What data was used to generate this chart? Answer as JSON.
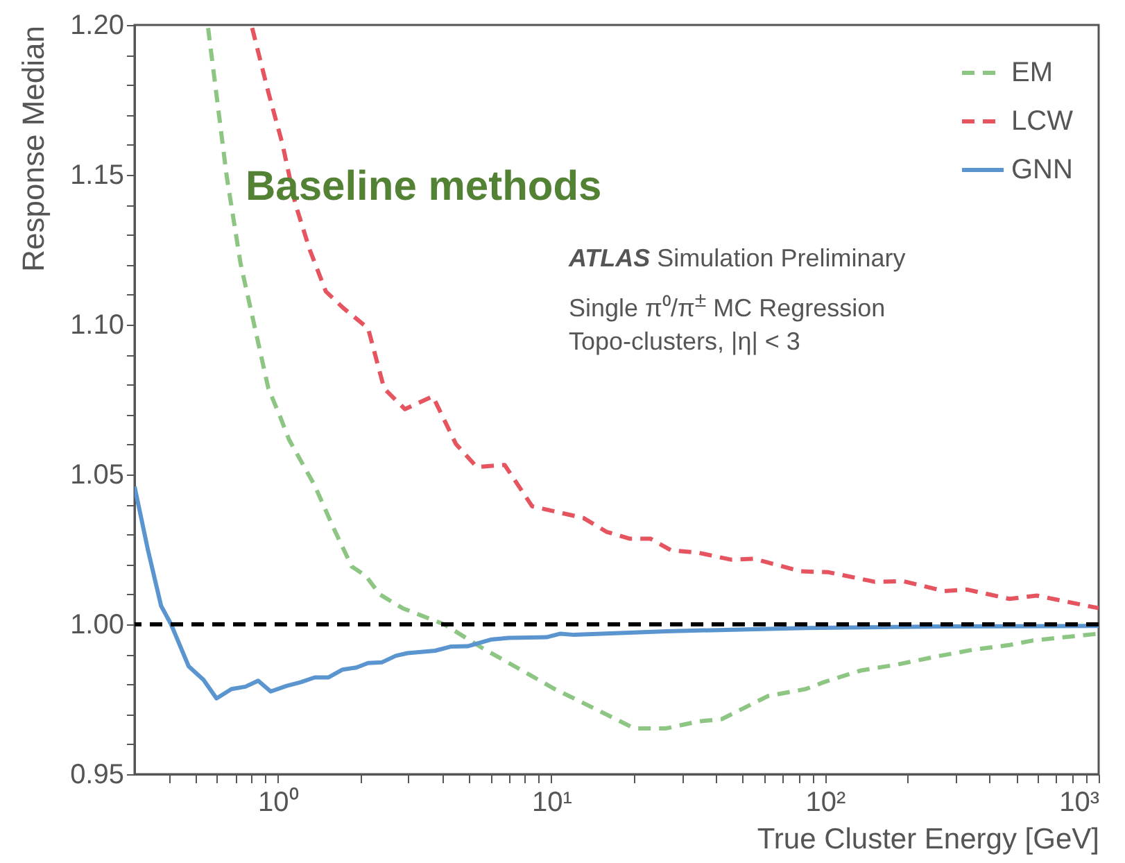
{
  "chart_data": {
    "type": "line",
    "xlabel": "True Cluster Energy [GeV]",
    "ylabel": "Response Median",
    "log": "x",
    "legend": "top right",
    "xlim": [
      0.3,
      1000
    ],
    "ylim": [
      0.95,
      1.2
    ],
    "xticks": [
      {
        "value": 0.4,
        "label": null
      },
      {
        "value": 0.5,
        "label": null
      },
      {
        "value": 0.6,
        "label": null
      },
      {
        "value": 0.7,
        "label": null
      },
      {
        "value": 0.8,
        "label": null
      },
      {
        "value": 0.9,
        "label": null
      },
      {
        "value": 1,
        "label": "10⁰"
      },
      {
        "value": 2,
        "label": null
      },
      {
        "value": 3,
        "label": null
      },
      {
        "value": 4,
        "label": null
      },
      {
        "value": 5,
        "label": null
      },
      {
        "value": 6,
        "label": null
      },
      {
        "value": 7,
        "label": null
      },
      {
        "value": 8,
        "label": null
      },
      {
        "value": 9,
        "label": null
      },
      {
        "value": 10,
        "label": "10¹"
      },
      {
        "value": 20,
        "label": null
      },
      {
        "value": 30,
        "label": null
      },
      {
        "value": 40,
        "label": null
      },
      {
        "value": 50,
        "label": null
      },
      {
        "value": 60,
        "label": null
      },
      {
        "value": 70,
        "label": null
      },
      {
        "value": 80,
        "label": null
      },
      {
        "value": 90,
        "label": null
      },
      {
        "value": 100,
        "label": "10²"
      },
      {
        "value": 200,
        "label": null
      },
      {
        "value": 300,
        "label": null
      },
      {
        "value": 400,
        "label": null
      },
      {
        "value": 500,
        "label": null
      },
      {
        "value": 600,
        "label": null
      },
      {
        "value": 700,
        "label": null
      },
      {
        "value": 800,
        "label": null
      },
      {
        "value": 900,
        "label": null
      },
      {
        "value": 1000,
        "label": "10³"
      }
    ],
    "yticks": [
      0.95,
      {
        "value": 0.96,
        "label": null
      },
      {
        "value": 0.97,
        "label": null
      },
      {
        "value": 0.98,
        "label": null
      },
      {
        "value": 0.99,
        "label": null
      },
      {
        "value": 1,
        "label": "1.00"
      },
      {
        "value": 1.01,
        "label": null
      },
      {
        "value": 1.02,
        "label": null
      },
      {
        "value": 1.03,
        "label": null
      },
      {
        "value": 1.04,
        "label": null
      },
      1.05,
      {
        "value": 1.06,
        "label": null
      },
      {
        "value": 1.07,
        "label": null
      },
      {
        "value": 1.08,
        "label": null
      },
      {
        "value": 1.09,
        "label": null
      },
      {
        "value": 1.1,
        "label": "1.10"
      },
      {
        "value": 1.11,
        "label": null
      },
      {
        "value": 1.12,
        "label": null
      },
      {
        "value": 1.13,
        "label": null
      },
      {
        "value": 1.14,
        "label": null
      },
      1.15,
      {
        "value": 1.16,
        "label": null
      },
      {
        "value": 1.17,
        "label": null
      },
      {
        "value": 1.18,
        "label": null
      },
      {
        "value": 1.19,
        "label": null
      },
      {
        "value": 1.2,
        "label": "1.20"
      }
    ],
    "series": [
      {
        "name": "EM",
        "color": "#8dc583",
        "line_style": "dashed",
        "x": [
          0.557,
          0.651,
          0.732,
          0.925,
          1.02,
          1.1,
          1.366,
          1.596,
          1.865,
          2.1,
          2.36,
          2.86,
          4.06,
          5.55,
          7.58,
          10.3,
          12.1,
          15.3,
          20.1,
          26.3,
          34.5,
          42,
          62,
          85,
          99,
          135,
          184,
          253,
          346,
          472,
          573,
          1000
        ],
        "values": [
          1.199,
          1.1497,
          1.1204,
          1.0787,
          1.0694,
          1.0617,
          1.0463,
          1.0324,
          1.0193,
          1.0162,
          1.01,
          1.0054,
          1.0,
          0.9923,
          0.9853,
          0.9784,
          0.9753,
          0.9707,
          0.9653,
          0.9653,
          0.9676,
          0.9684,
          0.9761,
          0.9784,
          0.9807,
          0.9846,
          0.9866,
          0.9892,
          0.9915,
          0.9931,
          0.9946,
          0.9969
        ]
      },
      {
        "name": "LCW",
        "color": "#e5545f",
        "line_style": "dashed",
        "x": [
          0.807,
          0.925,
          1.04,
          1.16,
          1.31,
          1.5,
          1.73,
          2.14,
          2.45,
          2.92,
          3.69,
          4.48,
          5.34,
          6.75,
          8.51,
          13.1,
          15.9,
          19.3,
          23,
          27.4,
          34.5,
          45.3,
          55,
          81.5,
          103,
          152,
          193,
          273,
          331,
          472,
          594,
          1000
        ],
        "values": [
          1.199,
          1.1775,
          1.1605,
          1.1404,
          1.125,
          1.1111,
          1.1057,
          1.0988,
          1.0787,
          1.0718,
          1.0761,
          1.0602,
          1.0525,
          1.0532,
          1.0394,
          1.0355,
          1.0309,
          1.0286,
          1.0286,
          1.0247,
          1.0239,
          1.0216,
          1.0219,
          1.0177,
          1.0174,
          1.0142,
          1.0144,
          1.0111,
          1.0116,
          1.0085,
          1.0096,
          1.0054
        ]
      },
      {
        "name": "GNN",
        "color": "#5b95cf",
        "line_style": "solid",
        "x": [
          0.3,
          0.336,
          0.375,
          0.408,
          0.473,
          0.536,
          0.598,
          0.678,
          0.762,
          0.849,
          0.943,
          1.08,
          1.215,
          1.366,
          1.535,
          1.727,
          1.94,
          2.14,
          2.4,
          2.7,
          2.98,
          3.76,
          4.31,
          4.94,
          6.0,
          6.99,
          9.6,
          10.8,
          12.1,
          26.3,
          85,
          273,
          1000
        ],
        "values": [
          1.046,
          1.0247,
          1.0062,
          1.0,
          0.986,
          0.9815,
          0.9753,
          0.9784,
          0.9792,
          0.9812,
          0.9776,
          0.9795,
          0.9807,
          0.9823,
          0.9823,
          0.9849,
          0.9856,
          0.9871,
          0.9873,
          0.9895,
          0.9904,
          0.9912,
          0.9926,
          0.9927,
          0.9949,
          0.9955,
          0.9957,
          0.9969,
          0.9965,
          0.9977,
          0.9988,
          0.9993,
          0.9995
        ]
      }
    ],
    "ref_lines": [
      {
        "axis": "y",
        "value": 1,
        "color": "#000000",
        "line_style": "dashed"
      }
    ],
    "annotations": [
      "Baseline methods",
      "ATLAS Simulation Preliminary",
      "Single π⁰/π$^{±}$ MC Regression",
      "Topo-clusters, |η| < 3"
    ]
  }
}
